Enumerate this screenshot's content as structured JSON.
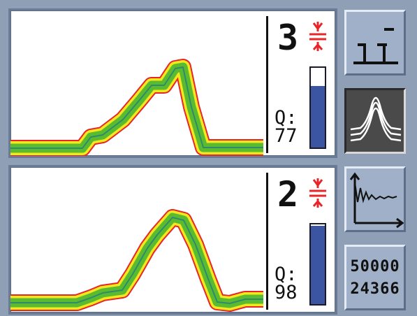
{
  "channels": [
    {
      "number": "3",
      "q_label": "Q:",
      "q_value": "77",
      "quality_fraction": 0.77
    },
    {
      "number": "2",
      "q_label": "Q:",
      "q_value": "98",
      "quality_fraction": 0.98
    }
  ],
  "counters": {
    "value_1": "50000",
    "value_2": "24366"
  },
  "icons": {
    "beam": "beam-symbol-icon",
    "profile_button": "bar-profile-icon",
    "waveform_button": "waveform-overlay-icon",
    "trend_button": "decay-trend-icon"
  },
  "colors": {
    "background": "#8e9fb6",
    "bar_fill": "#3c55a3",
    "trace_outer": "#e8262a",
    "trace_mid": "#f2e81e",
    "trace_inner": "#5bbb2f",
    "trace_core": "#2f8a6f"
  }
}
